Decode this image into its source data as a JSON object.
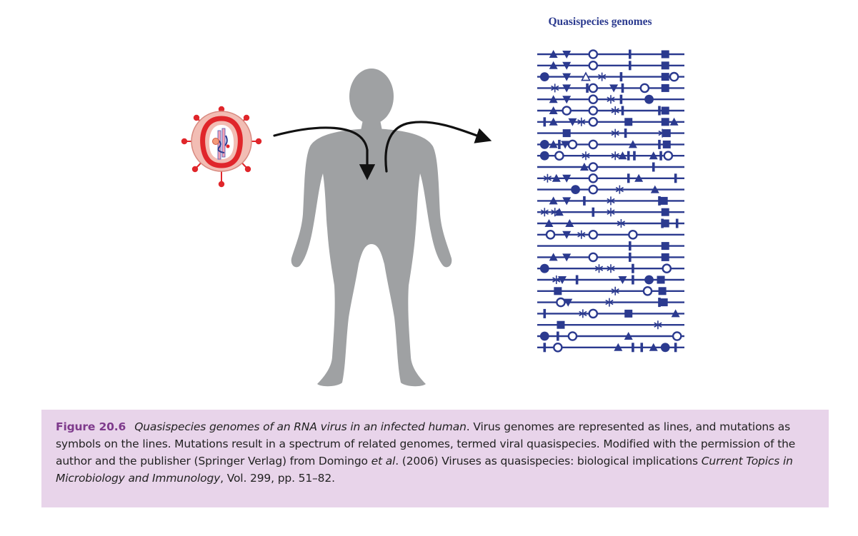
{
  "panel_title": "Quasispecies genomes",
  "caption": {
    "figure_label": "Figure 20.6",
    "segments": [
      {
        "text": "Quasispecies genomes of an RNA virus in an infected human",
        "italic": true
      },
      {
        "text": ". Virus genomes are represented as lines, and mutations as symbols on the lines. Mutations result in a spectrum of related genomes, termed viral quasispecies. Modified with the permission of the author and the publisher (Springer Verlag) from Domingo ",
        "italic": false
      },
      {
        "text": "et al",
        "italic": true
      },
      {
        "text": ". (2006) Viruses as quasispecies: biological implications ",
        "italic": false
      },
      {
        "text": "Current Topics in Microbiology and Immunology",
        "italic": true
      },
      {
        "text": ", Vol. 299, pp. 51–82.",
        "italic": false
      }
    ]
  },
  "colors": {
    "genome": "#2b3a8f",
    "silhouette": "#9fa1a3",
    "virus_shell": "#f2bdb4",
    "virus_red": "#e0262b",
    "arrow": "#111111",
    "caption_bg": "#e8d4ea",
    "figure_label": "#7e3a8c"
  },
  "genomes": [
    [
      [
        "T",
        0.11
      ],
      [
        "V",
        0.2
      ],
      [
        "O",
        0.38
      ],
      [
        "B",
        0.63
      ],
      [
        "S",
        0.87
      ]
    ],
    [
      [
        "T",
        0.11
      ],
      [
        "V",
        0.2
      ],
      [
        "O",
        0.38
      ],
      [
        "B",
        0.63
      ],
      [
        "S",
        0.87
      ]
    ],
    [
      [
        "C",
        0.05
      ],
      [
        "V",
        0.2
      ],
      [
        "A",
        0.33
      ],
      [
        "X",
        0.44
      ],
      [
        "B",
        0.57
      ],
      [
        "S",
        0.87
      ],
      [
        "O",
        0.93
      ]
    ],
    [
      [
        "X",
        0.12
      ],
      [
        "V",
        0.2
      ],
      [
        "B",
        0.34
      ],
      [
        "O",
        0.38
      ],
      [
        "V",
        0.52
      ],
      [
        "B",
        0.58
      ],
      [
        "O",
        0.73
      ],
      [
        "S",
        0.87
      ]
    ],
    [
      [
        "T",
        0.11
      ],
      [
        "V",
        0.2
      ],
      [
        "O",
        0.38
      ],
      [
        "X",
        0.5
      ],
      [
        "B",
        0.57
      ],
      [
        "C",
        0.76
      ]
    ],
    [
      [
        "T",
        0.11
      ],
      [
        "O",
        0.2
      ],
      [
        "O",
        0.38
      ],
      [
        "X",
        0.53
      ],
      [
        "B",
        0.58
      ],
      [
        "B",
        0.83
      ],
      [
        "S",
        0.87
      ]
    ],
    [
      [
        "B",
        0.05
      ],
      [
        "T",
        0.11
      ],
      [
        "V",
        0.24
      ],
      [
        "X",
        0.3
      ],
      [
        "O",
        0.38
      ],
      [
        "S",
        0.62
      ],
      [
        "S",
        0.87
      ],
      [
        "T",
        0.93
      ]
    ],
    [
      [
        "S",
        0.2
      ],
      [
        "X",
        0.53
      ],
      [
        "B",
        0.6
      ],
      [
        "X",
        0.85
      ],
      [
        "S",
        0.88
      ]
    ],
    [
      [
        "C",
        0.05
      ],
      [
        "T",
        0.11
      ],
      [
        "B",
        0.15
      ],
      [
        "V",
        0.19
      ],
      [
        "O",
        0.24
      ],
      [
        "O",
        0.38
      ],
      [
        "T",
        0.65
      ],
      [
        "B",
        0.83
      ],
      [
        "S",
        0.88
      ]
    ],
    [
      [
        "C",
        0.05
      ],
      [
        "O",
        0.15
      ],
      [
        "X",
        0.33
      ],
      [
        "X",
        0.53
      ],
      [
        "T",
        0.58
      ],
      [
        "B",
        0.62
      ],
      [
        "B",
        0.66
      ],
      [
        "T",
        0.79
      ],
      [
        "B",
        0.84
      ],
      [
        "O",
        0.89
      ]
    ],
    [
      [
        "T",
        0.32
      ],
      [
        "O",
        0.38
      ],
      [
        "B",
        0.79
      ]
    ],
    [
      [
        "X",
        0.07
      ],
      [
        "T",
        0.13
      ],
      [
        "V",
        0.2
      ],
      [
        "O",
        0.38
      ],
      [
        "B",
        0.62
      ],
      [
        "T",
        0.69
      ],
      [
        "B",
        0.94
      ]
    ],
    [
      [
        "C",
        0.26
      ],
      [
        "O",
        0.38
      ],
      [
        "X",
        0.56
      ],
      [
        "T",
        0.8
      ]
    ],
    [
      [
        "T",
        0.11
      ],
      [
        "V",
        0.2
      ],
      [
        "B",
        0.32
      ],
      [
        "X",
        0.5
      ],
      [
        "B",
        0.83
      ],
      [
        "S",
        0.86
      ]
    ],
    [
      [
        "X",
        0.05
      ],
      [
        "X",
        0.12
      ],
      [
        "T",
        0.15
      ],
      [
        "B",
        0.38
      ],
      [
        "X",
        0.5
      ],
      [
        "S",
        0.87
      ]
    ],
    [
      [
        "T",
        0.08
      ],
      [
        "T",
        0.22
      ],
      [
        "X",
        0.57
      ],
      [
        "B",
        0.85
      ],
      [
        "S",
        0.87
      ],
      [
        "B",
        0.95
      ]
    ],
    [
      [
        "O",
        0.09
      ],
      [
        "V",
        0.2
      ],
      [
        "X",
        0.3
      ],
      [
        "O",
        0.38
      ],
      [
        "O",
        0.65
      ]
    ],
    [
      [
        "B",
        0.63
      ],
      [
        "S",
        0.87
      ]
    ],
    [
      [
        "T",
        0.11
      ],
      [
        "V",
        0.2
      ],
      [
        "O",
        0.38
      ],
      [
        "B",
        0.63
      ],
      [
        "S",
        0.87
      ]
    ],
    [
      [
        "C",
        0.05
      ],
      [
        "X",
        0.42
      ],
      [
        "X",
        0.5
      ],
      [
        "B",
        0.65
      ],
      [
        "O",
        0.88
      ]
    ],
    [
      [
        "X",
        0.13
      ],
      [
        "V",
        0.17
      ],
      [
        "B",
        0.27
      ],
      [
        "V",
        0.58
      ],
      [
        "B",
        0.65
      ],
      [
        "C",
        0.76
      ],
      [
        "S",
        0.84
      ]
    ],
    [
      [
        "S",
        0.14
      ],
      [
        "X",
        0.53
      ],
      [
        "O",
        0.75
      ],
      [
        "S",
        0.85
      ]
    ],
    [
      [
        "O",
        0.16
      ],
      [
        "V",
        0.21
      ],
      [
        "X",
        0.49
      ],
      [
        "B",
        0.83
      ],
      [
        "S",
        0.86
      ]
    ],
    [
      [
        "B",
        0.05
      ],
      [
        "X",
        0.31
      ],
      [
        "O",
        0.38
      ],
      [
        "S",
        0.62
      ],
      [
        "T",
        0.94
      ]
    ],
    [
      [
        "S",
        0.16
      ],
      [
        "X",
        0.82
      ]
    ],
    [
      [
        "C",
        0.05
      ],
      [
        "B",
        0.14
      ],
      [
        "O",
        0.24
      ],
      [
        "T",
        0.62
      ],
      [
        "O",
        0.95
      ]
    ],
    [
      [
        "B",
        0.05
      ],
      [
        "O",
        0.14
      ],
      [
        "T",
        0.55
      ],
      [
        "B",
        0.65
      ],
      [
        "B",
        0.71
      ],
      [
        "T",
        0.79
      ],
      [
        "C",
        0.87
      ],
      [
        "B",
        0.94
      ]
    ]
  ]
}
